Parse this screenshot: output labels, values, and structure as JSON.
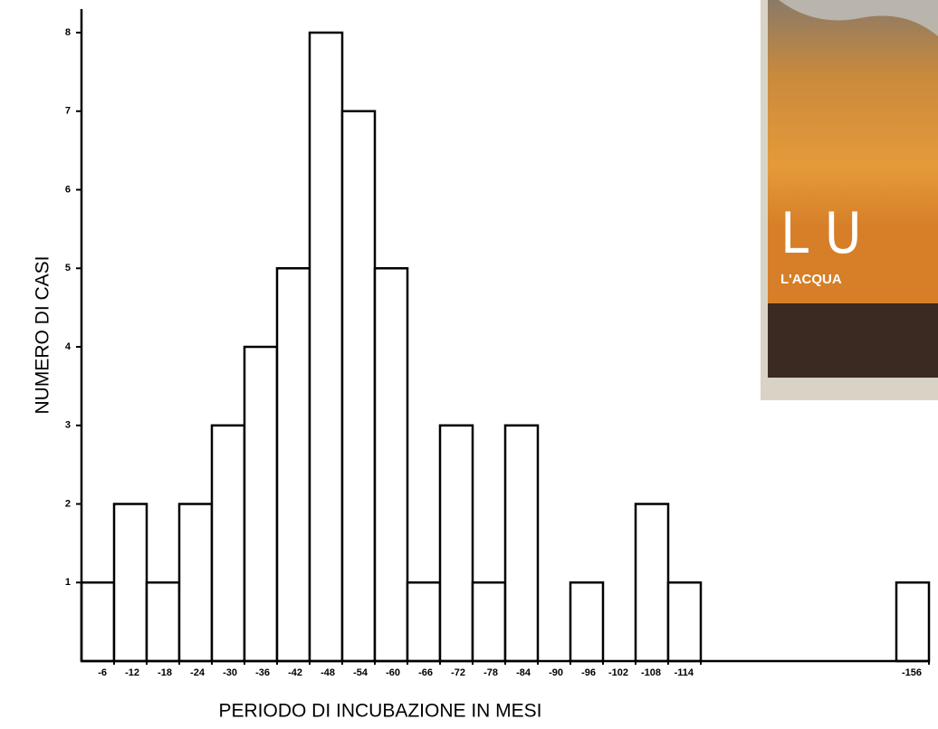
{
  "chart_data": {
    "type": "histogram",
    "xlabel": "PERIODO DI INCUBAZIONE IN MESI",
    "ylabel": "NUMERO DI CASI",
    "bins": [
      0,
      6,
      12,
      18,
      24,
      30,
      36,
      42,
      48,
      54,
      60,
      66,
      72,
      78,
      84,
      90,
      96,
      102,
      108,
      114,
      120,
      126,
      132,
      138,
      144,
      150,
      156
    ],
    "values": [
      1,
      2,
      1,
      2,
      3,
      4,
      5,
      8,
      7,
      5,
      1,
      3,
      1,
      3,
      0,
      1,
      0,
      2,
      1,
      0,
      0,
      0,
      0,
      0,
      0,
      1
    ],
    "color": "#ffffff",
    "xlim": [
      0,
      156
    ],
    "xticks": [
      {
        "value": 6,
        "label": "-6"
      },
      {
        "value": 12,
        "label": "-12"
      },
      {
        "value": 18,
        "label": "-18"
      },
      {
        "value": 24,
        "label": "-24"
      },
      {
        "value": 30,
        "label": "-30"
      },
      {
        "value": 36,
        "label": "-36"
      },
      {
        "value": 42,
        "label": "-42"
      },
      {
        "value": 48,
        "label": "-48"
      },
      {
        "value": 54,
        "label": "-54"
      },
      {
        "value": 60,
        "label": "-60"
      },
      {
        "value": 66,
        "label": "-66"
      },
      {
        "value": 72,
        "label": "-72"
      },
      {
        "value": 78,
        "label": "-78"
      },
      {
        "value": 84,
        "label": "-84"
      },
      {
        "value": 90,
        "label": "-90"
      },
      {
        "value": 96,
        "label": "-96"
      },
      {
        "value": 102,
        "label": "-102"
      },
      {
        "value": 108,
        "label": "-108"
      },
      {
        "value": 114,
        "label": "-114"
      },
      {
        "value": 156,
        "label": "-156"
      }
    ],
    "ylim": [
      0,
      8.3
    ],
    "yticks": [
      1,
      2,
      3,
      4,
      5,
      6,
      7,
      8
    ],
    "grid": false
  },
  "poster": {
    "title": "L U",
    "subtitle": "L'ACQUA"
  }
}
